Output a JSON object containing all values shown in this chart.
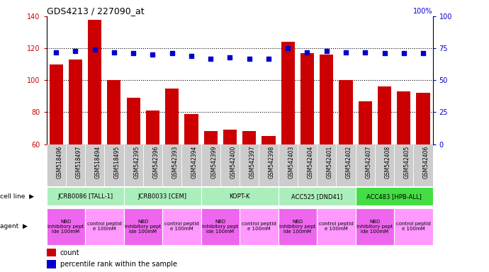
{
  "title": "GDS4213 / 227090_at",
  "samples": [
    "GSM518496",
    "GSM518497",
    "GSM518494",
    "GSM518495",
    "GSM542395",
    "GSM542396",
    "GSM542393",
    "GSM542394",
    "GSM542399",
    "GSM542400",
    "GSM542397",
    "GSM542398",
    "GSM542403",
    "GSM542404",
    "GSM542401",
    "GSM542402",
    "GSM542407",
    "GSM542408",
    "GSM542405",
    "GSM542406"
  ],
  "counts": [
    110,
    113,
    138,
    100,
    89,
    81,
    95,
    79,
    68,
    69,
    68,
    65,
    124,
    117,
    116,
    100,
    87,
    96,
    93,
    92
  ],
  "percentiles": [
    72,
    73,
    74,
    72,
    71,
    70,
    71,
    69,
    67,
    68,
    67,
    67,
    75,
    72,
    73,
    72,
    72,
    71,
    71,
    71
  ],
  "ylim_left": [
    60,
    140
  ],
  "ylim_right": [
    0,
    100
  ],
  "yticks_left": [
    60,
    80,
    100,
    120,
    140
  ],
  "yticks_right": [
    0,
    25,
    50,
    75,
    100
  ],
  "cell_lines": [
    {
      "label": "JCRB0086 [TALL-1]",
      "start": 0,
      "end": 4,
      "color": "#AAEEBB"
    },
    {
      "label": "JCRB0033 [CEM]",
      "start": 4,
      "end": 8,
      "color": "#AAEEBB"
    },
    {
      "label": "KOPT-K",
      "start": 8,
      "end": 12,
      "color": "#AAEEBB"
    },
    {
      "label": "ACC525 [DND41]",
      "start": 12,
      "end": 16,
      "color": "#AAEEBB"
    },
    {
      "label": "ACC483 [HPB-ALL]",
      "start": 16,
      "end": 20,
      "color": "#44DD44"
    }
  ],
  "agents": [
    {
      "label": "NBD\ninhibitory pept\nide 100mM",
      "start": 0,
      "end": 2,
      "color": "#EE66EE"
    },
    {
      "label": "control peptid\ne 100mM",
      "start": 2,
      "end": 4,
      "color": "#FF99FF"
    },
    {
      "label": "NBD\ninhibitory pept\nide 100mM",
      "start": 4,
      "end": 6,
      "color": "#EE66EE"
    },
    {
      "label": "control peptid\ne 100mM",
      "start": 6,
      "end": 8,
      "color": "#FF99FF"
    },
    {
      "label": "NBD\ninhibitory pept\nide 100mM",
      "start": 8,
      "end": 10,
      "color": "#EE66EE"
    },
    {
      "label": "control peptid\ne 100mM",
      "start": 10,
      "end": 12,
      "color": "#FF99FF"
    },
    {
      "label": "NBD\ninhibitory pept\nide 100mM",
      "start": 12,
      "end": 14,
      "color": "#EE66EE"
    },
    {
      "label": "control peptid\ne 100mM",
      "start": 14,
      "end": 16,
      "color": "#FF99FF"
    },
    {
      "label": "NBD\ninhibitory pept\nide 100mM",
      "start": 16,
      "end": 18,
      "color": "#EE66EE"
    },
    {
      "label": "control peptid\ne 100mM",
      "start": 18,
      "end": 20,
      "color": "#FF99FF"
    }
  ],
  "bar_color": "#CC0000",
  "dot_color": "#0000CC",
  "tick_label_bg": "#CCCCCC",
  "legend_count_color": "#CC0000",
  "legend_dot_color": "#0000CC",
  "gridline_color": "#000000",
  "left_label_color": "#CC0000",
  "right_label_color": "#0000CC"
}
